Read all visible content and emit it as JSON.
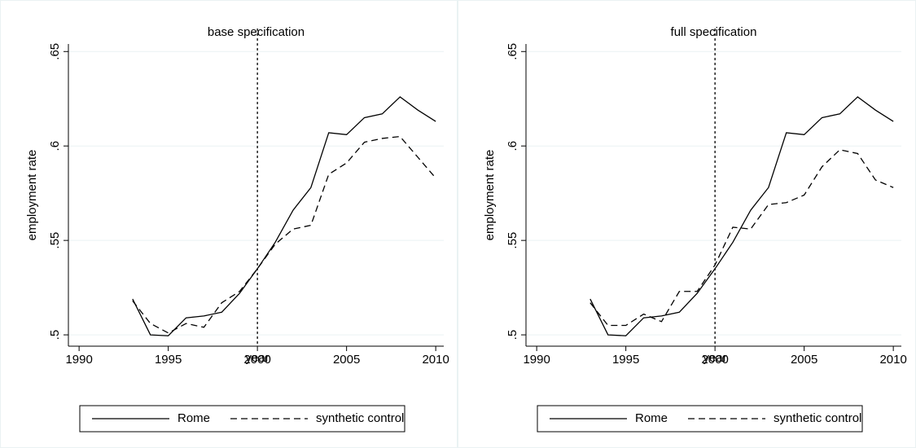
{
  "chart_data": [
    {
      "type": "line",
      "title": "base specification",
      "x_label": "year",
      "y_label": "employment rate",
      "x": [
        1993,
        1994,
        1995,
        1996,
        1997,
        1998,
        1999,
        2000,
        2001,
        2002,
        2003,
        2004,
        2005,
        2006,
        2007,
        2008,
        2009,
        2010
      ],
      "series": [
        {
          "name": "Rome",
          "color": "#000000",
          "style": "solid",
          "values": [
            0.519,
            0.5,
            0.4995,
            0.509,
            0.51,
            0.512,
            0.522,
            0.535,
            0.549,
            0.566,
            0.578,
            0.607,
            0.606,
            0.615,
            0.617,
            0.626,
            0.619,
            0.613
          ]
        },
        {
          "name": "synthetic control",
          "color": "#000000",
          "style": "dashed",
          "values": [
            0.518,
            0.506,
            0.501,
            0.506,
            0.504,
            0.517,
            0.523,
            0.535,
            0.548,
            0.556,
            0.558,
            0.585,
            0.591,
            0.602,
            0.604,
            0.605,
            0.594,
            0.583
          ]
        }
      ],
      "xlim": [
        1989.4,
        2010.45
      ],
      "xticks": [
        1990,
        1995,
        2000,
        2005,
        2010
      ],
      "ylim": [
        0.494,
        0.654
      ],
      "yticks": [
        {
          "value": 0.5,
          "label": ".5"
        },
        {
          "value": 0.55,
          "label": ".55"
        },
        {
          "value": 0.6,
          "label": ".6"
        },
        {
          "value": 0.65,
          "label": ".65"
        }
      ],
      "xline": 2000,
      "grid": true,
      "legend": "bottom"
    },
    {
      "type": "line",
      "title": "full specification",
      "x_label": "year",
      "y_label": "employment rate",
      "x": [
        1993,
        1994,
        1995,
        1996,
        1997,
        1998,
        1999,
        2000,
        2001,
        2002,
        2003,
        2004,
        2005,
        2006,
        2007,
        2008,
        2009,
        2010
      ],
      "series": [
        {
          "name": "Rome",
          "color": "#000000",
          "style": "solid",
          "values": [
            0.519,
            0.5,
            0.4995,
            0.509,
            0.51,
            0.512,
            0.522,
            0.535,
            0.549,
            0.566,
            0.578,
            0.607,
            0.606,
            0.615,
            0.617,
            0.626,
            0.619,
            0.613
          ]
        },
        {
          "name": "synthetic control",
          "color": "#000000",
          "style": "dashed",
          "values": [
            0.517,
            0.505,
            0.505,
            0.511,
            0.507,
            0.523,
            0.523,
            0.537,
            0.557,
            0.556,
            0.569,
            0.57,
            0.574,
            0.589,
            0.598,
            0.596,
            0.582,
            0.578
          ]
        }
      ],
      "xlim": [
        1989.4,
        2010.45
      ],
      "xticks": [
        1990,
        1995,
        2000,
        2005,
        2010
      ],
      "ylim": [
        0.494,
        0.654
      ],
      "yticks": [
        {
          "value": 0.5,
          "label": ".5"
        },
        {
          "value": 0.55,
          "label": ".55"
        },
        {
          "value": 0.6,
          "label": ".6"
        },
        {
          "value": 0.65,
          "label": ".65"
        }
      ],
      "xline": 2000,
      "grid": true,
      "legend": "bottom"
    }
  ]
}
